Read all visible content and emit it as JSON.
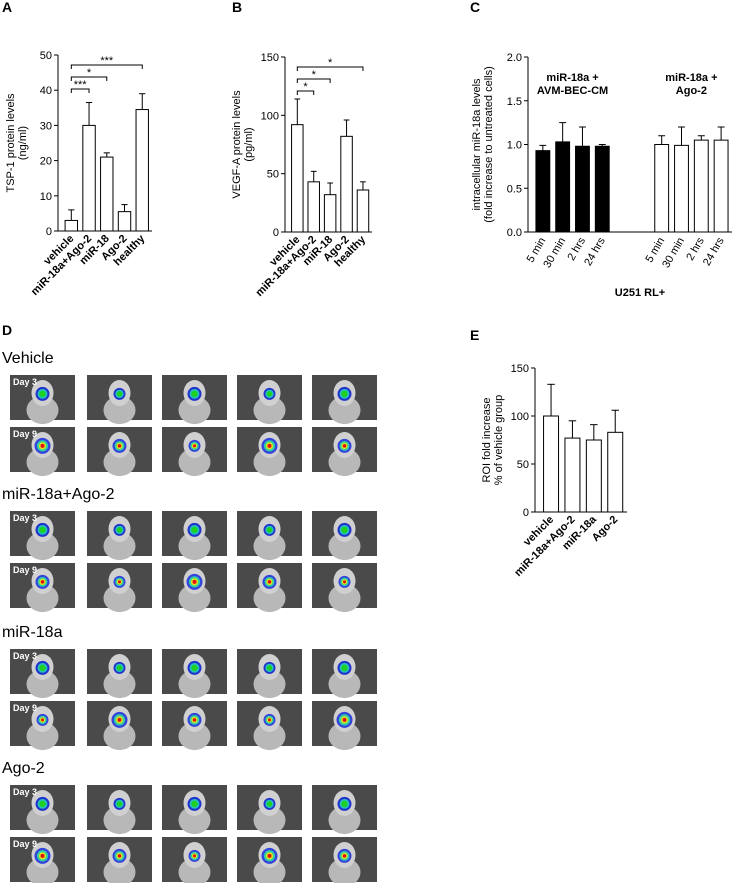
{
  "chart_data": [
    {
      "type": "bar",
      "panel": "A",
      "ylabel": [
        "TSP-1 protein levels",
        "(ng/ml)"
      ],
      "categories": [
        "vehicle",
        "miR-18a+Ago-2",
        "miR-18",
        "Ago-2",
        "healthy"
      ],
      "values": [
        3,
        30,
        21,
        5.5,
        34.5
      ],
      "errors": [
        3,
        6.5,
        1.2,
        2,
        4.5
      ],
      "color": "#ffffff",
      "ylim": [
        0,
        50
      ],
      "yticks": [
        0,
        10,
        20,
        30,
        40,
        50
      ],
      "comparisons": [
        {
          "from": "vehicle",
          "to": "miR-18a+Ago-2",
          "label": "***"
        },
        {
          "from": "vehicle",
          "to": "miR-18",
          "label": "*"
        },
        {
          "from": "vehicle",
          "to": "healthy",
          "label": "***"
        }
      ]
    },
    {
      "type": "bar",
      "panel": "B",
      "ylabel": [
        "VEGF-A protein levels",
        "(pg/ml)"
      ],
      "categories": [
        "vehicle",
        "miR-18a+Ago-2",
        "miR-18",
        "Ago-2",
        "healthy"
      ],
      "values": [
        92,
        43,
        32,
        82,
        36
      ],
      "errors": [
        22,
        9,
        10,
        14,
        7
      ],
      "color": "#ffffff",
      "ylim": [
        0,
        150
      ],
      "yticks": [
        0,
        50,
        100,
        150
      ],
      "comparisons": [
        {
          "from": "vehicle",
          "to": "miR-18a+Ago-2",
          "label": "*"
        },
        {
          "from": "vehicle",
          "to": "miR-18",
          "label": "*"
        },
        {
          "from": "vehicle",
          "to": "healthy",
          "label": "*"
        }
      ]
    },
    {
      "type": "bar",
      "panel": "C",
      "ylabel": [
        "intracellular miR-18a levels",
        "(fold increase to untreated cells)"
      ],
      "xlabel": "U251 RL+",
      "groups": [
        {
          "name": [
            "miR-18a +",
            "AVM-BEC-CM"
          ],
          "color": "#000000",
          "categories": [
            "5 min",
            "30 min",
            "2 hrs",
            "24 hrs"
          ],
          "values": [
            0.93,
            1.03,
            0.98,
            0.98
          ],
          "errors": [
            0.06,
            0.22,
            0.22,
            0.02
          ]
        },
        {
          "name": [
            "miR-18a +",
            "Ago-2"
          ],
          "color": "#ffffff",
          "categories": [
            "5 min",
            "30 min",
            "2 hrs",
            "24 hrs"
          ],
          "values": [
            1.0,
            0.99,
            1.05,
            1.05
          ],
          "errors": [
            0.1,
            0.21,
            0.05,
            0.15
          ]
        }
      ],
      "ylim": [
        0,
        2
      ],
      "yticks": [
        {
          "value": 0,
          "label": "0.0"
        },
        {
          "value": 0.5,
          "label": "0.5"
        },
        {
          "value": 1,
          "label": "1.0"
        },
        {
          "value": 1.5,
          "label": "1.5"
        },
        {
          "value": 2,
          "label": "2.0"
        }
      ]
    },
    {
      "type": "bar",
      "panel": "E",
      "ylabel": [
        "ROI fold increase",
        "% of vehicle group"
      ],
      "categories": [
        "vehicle",
        "miR-18a+Ago-2",
        "miR-18a",
        "Ago-2"
      ],
      "values": [
        100,
        77,
        75,
        83
      ],
      "errors": [
        33,
        18,
        16,
        23
      ],
      "color": "#ffffff",
      "ylim": [
        0,
        150
      ],
      "yticks": [
        0,
        50,
        100,
        150
      ]
    }
  ],
  "panel_d": {
    "panel": "D",
    "groups": [
      {
        "label": "Vehicle",
        "days": [
          "Day 3",
          "Day 9"
        ]
      },
      {
        "label": "miR-18a+Ago-2",
        "days": [
          "Day 3",
          "Day 9"
        ]
      },
      {
        "label": "miR-18a",
        "days": [
          "Day 3",
          "Day 9"
        ]
      },
      {
        "label": "Ago-2",
        "days": [
          "Day 3",
          "Day 9"
        ]
      }
    ]
  }
}
